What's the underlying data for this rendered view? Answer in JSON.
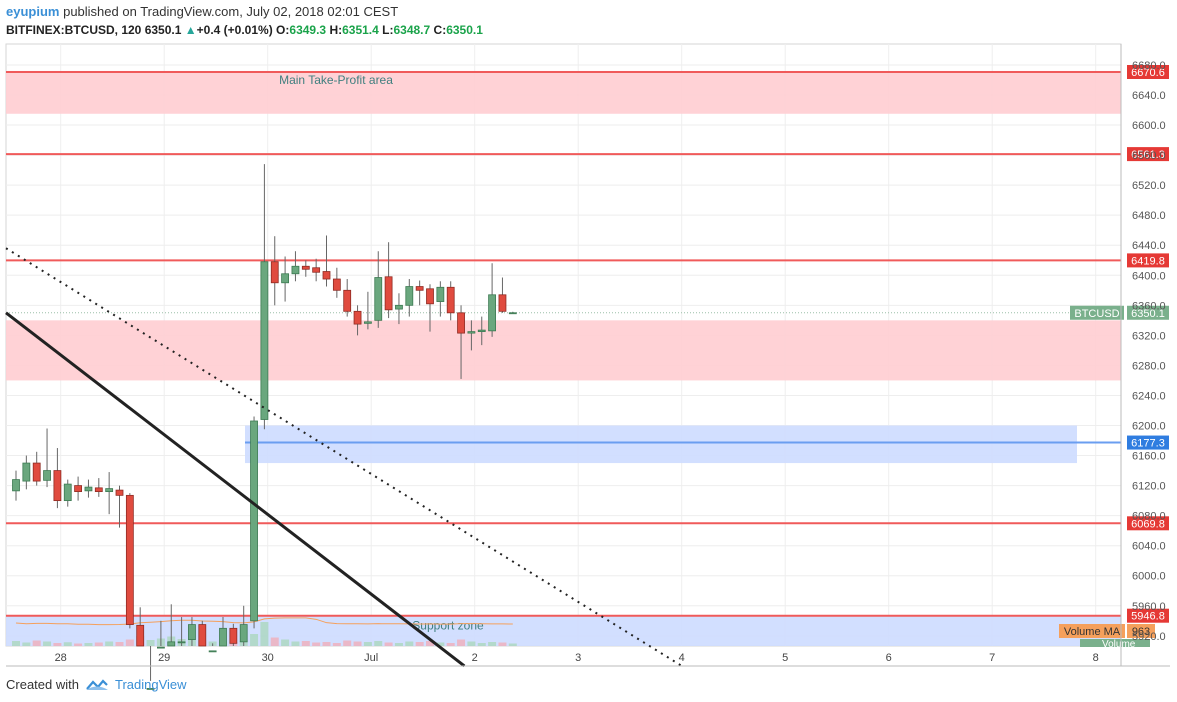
{
  "header": {
    "author": "eyupium",
    "published_text": "published on TradingView.com, July 02, 2018 02:01 CEST",
    "symbol_line": "BITFINEX:BTCUSD, 120",
    "last": "6350.1",
    "change": "+0.4 (+0.01%)",
    "o_label": "O:",
    "o_val": "6349.3",
    "h_label": "H:",
    "h_val": "6351.4",
    "l_label": "L:",
    "l_val": "6348.7",
    "c_label": "C:",
    "c_val": "6350.1"
  },
  "footer": {
    "created_with": "Created with",
    "brand": "TradingView"
  },
  "colors": {
    "up": "#26a69a",
    "up_fill": "#6aa77e",
    "down": "#e04b3f",
    "red_line": "#f05a5a",
    "red_zone": "#ffcdd2",
    "blue_zone": "#cddcff",
    "blue_line": "#6a9ef0",
    "price_label": "#7ab08c",
    "volume_ma_label": "#f5a05c"
  },
  "chart_data": {
    "type": "candlestick",
    "symbol": "BTCUSD",
    "last_price": 6350.1,
    "y_ticks": [
      5920,
      5960,
      6000,
      6040,
      6080,
      6120,
      6160,
      6200,
      6240,
      6280,
      6320,
      6360,
      6400,
      6440,
      6480,
      6520,
      6560,
      6600,
      6640,
      6680
    ],
    "x_ticks": [
      {
        "label": "28",
        "idx": 2
      },
      {
        "label": "29",
        "idx": 12
      },
      {
        "label": "30",
        "idx": 22
      },
      {
        "label": "Jul",
        "idx": 32
      },
      {
        "label": "2",
        "idx": 42
      },
      {
        "label": "3",
        "idx": 52
      },
      {
        "label": "4",
        "idx": 62
      },
      {
        "label": "5",
        "idx": 72
      },
      {
        "label": "6",
        "idx": 82
      },
      {
        "label": "7",
        "idx": 92
      },
      {
        "label": "8",
        "idx": 102
      }
    ],
    "horizontal_levels": [
      {
        "price": 6670.6,
        "label": "6670.6",
        "kind": "resistance"
      },
      {
        "price": 6561.3,
        "label": "6561.3",
        "kind": "resistance"
      },
      {
        "price": 6419.8,
        "label": "6419.8",
        "kind": "resistance"
      },
      {
        "price": 6177.3,
        "label": "6177.3",
        "kind": "level"
      },
      {
        "price": 6069.8,
        "label": "6069.8",
        "kind": "resistance"
      },
      {
        "price": 5946.8,
        "label": "5946.8",
        "kind": "resistance"
      }
    ],
    "zones": [
      {
        "name": "Main Take-Profit area",
        "from": 6615,
        "to": 6672,
        "color": "red",
        "labelled": true
      },
      {
        "name": "",
        "from": 6260,
        "to": 6340,
        "color": "red",
        "labelled": false
      },
      {
        "name": "",
        "from": 6150,
        "to": 6200,
        "color": "blue",
        "labelled": false
      },
      {
        "name": "Support zone",
        "from": 5880,
        "to": 5946,
        "color": "blue",
        "labelled": true
      }
    ],
    "candles": [
      {
        "o": 6113,
        "h": 6140,
        "l": 6100,
        "c": 6128
      },
      {
        "o": 6126,
        "h": 6160,
        "l": 6115,
        "c": 6150
      },
      {
        "o": 6150,
        "h": 6165,
        "l": 6120,
        "c": 6126
      },
      {
        "o": 6127,
        "h": 6196,
        "l": 6118,
        "c": 6140
      },
      {
        "o": 6140,
        "h": 6170,
        "l": 6090,
        "c": 6100
      },
      {
        "o": 6100,
        "h": 6128,
        "l": 6092,
        "c": 6122
      },
      {
        "o": 6120,
        "h": 6132,
        "l": 6100,
        "c": 6112
      },
      {
        "o": 6113,
        "h": 6128,
        "l": 6104,
        "c": 6118
      },
      {
        "o": 6117,
        "h": 6130,
        "l": 6105,
        "c": 6112
      },
      {
        "o": 6112,
        "h": 6138,
        "l": 6082,
        "c": 6116
      },
      {
        "o": 6114,
        "h": 6120,
        "l": 6064,
        "c": 6107
      },
      {
        "o": 6107,
        "h": 6110,
        "l": 5930,
        "c": 5935
      },
      {
        "o": 5934,
        "h": 5958,
        "l": 5800,
        "c": 5820
      },
      {
        "o": 5820,
        "h": 5860,
        "l": 5790,
        "c": 5850
      },
      {
        "o": 5850,
        "h": 5940,
        "l": 5830,
        "c": 5905
      },
      {
        "o": 5905,
        "h": 5962,
        "l": 5880,
        "c": 5912
      },
      {
        "o": 5912,
        "h": 5945,
        "l": 5890,
        "c": 5912
      },
      {
        "o": 5915,
        "h": 5945,
        "l": 5900,
        "c": 5935
      },
      {
        "o": 5935,
        "h": 5940,
        "l": 5860,
        "c": 5890
      },
      {
        "o": 5890,
        "h": 5910,
        "l": 5860,
        "c": 5900
      },
      {
        "o": 5900,
        "h": 5945,
        "l": 5880,
        "c": 5930
      },
      {
        "o": 5930,
        "h": 5936,
        "l": 5885,
        "c": 5910
      },
      {
        "o": 5912,
        "h": 5960,
        "l": 5900,
        "c": 5935
      },
      {
        "o": 5940,
        "h": 6212,
        "l": 5930,
        "c": 6206
      },
      {
        "o": 6208,
        "h": 6548,
        "l": 6195,
        "c": 6418
      },
      {
        "o": 6418,
        "h": 6452,
        "l": 6360,
        "c": 6390
      },
      {
        "o": 6390,
        "h": 6425,
        "l": 6365,
        "c": 6402
      },
      {
        "o": 6402,
        "h": 6432,
        "l": 6392,
        "c": 6412
      },
      {
        "o": 6412,
        "h": 6420,
        "l": 6398,
        "c": 6408
      },
      {
        "o": 6410,
        "h": 6422,
        "l": 6392,
        "c": 6404
      },
      {
        "o": 6405,
        "h": 6453,
        "l": 6385,
        "c": 6395
      },
      {
        "o": 6395,
        "h": 6410,
        "l": 6370,
        "c": 6380
      },
      {
        "o": 6380,
        "h": 6395,
        "l": 6345,
        "c": 6352
      },
      {
        "o": 6352,
        "h": 6360,
        "l": 6320,
        "c": 6335
      },
      {
        "o": 6336,
        "h": 6378,
        "l": 6328,
        "c": 6338
      },
      {
        "o": 6340,
        "h": 6432,
        "l": 6330,
        "c": 6397
      },
      {
        "o": 6398,
        "h": 6444,
        "l": 6343,
        "c": 6354
      },
      {
        "o": 6355,
        "h": 6376,
        "l": 6335,
        "c": 6360
      },
      {
        "o": 6360,
        "h": 6395,
        "l": 6345,
        "c": 6385
      },
      {
        "o": 6385,
        "h": 6393,
        "l": 6360,
        "c": 6380
      },
      {
        "o": 6382,
        "h": 6388,
        "l": 6325,
        "c": 6362
      },
      {
        "o": 6365,
        "h": 6392,
        "l": 6345,
        "c": 6384
      },
      {
        "o": 6384,
        "h": 6392,
        "l": 6340,
        "c": 6350
      },
      {
        "o": 6350,
        "h": 6360,
        "l": 6262,
        "c": 6323
      },
      {
        "o": 6323,
        "h": 6340,
        "l": 6300,
        "c": 6325
      },
      {
        "o": 6325,
        "h": 6345,
        "l": 6307,
        "c": 6327
      },
      {
        "o": 6326,
        "h": 6416,
        "l": 6318,
        "c": 6374
      },
      {
        "o": 6374,
        "h": 6397,
        "l": 6350,
        "c": 6352
      },
      {
        "o": 6349.3,
        "h": 6351.4,
        "l": 6348.7,
        "c": 6350.1
      }
    ],
    "volume_label": "Volume MA",
    "volume_value": "963",
    "volume_label2": "Volume",
    "volume_bars": [
      20,
      14,
      22,
      18,
      12,
      15,
      10,
      12,
      14,
      18,
      16,
      26,
      40,
      24,
      30,
      38,
      28,
      26,
      22,
      18,
      20,
      16,
      22,
      48,
      96,
      34,
      26,
      18,
      20,
      14,
      16,
      12,
      22,
      18,
      16,
      20,
      14,
      12,
      18,
      16,
      20,
      14,
      12,
      26,
      18,
      12,
      16,
      14,
      10
    ],
    "trendlines": [
      {
        "name": "",
        "style": "solid",
        "from": {
          "idx": -1,
          "price": 6350
        },
        "to": {
          "idx": 41,
          "price": 5880
        }
      },
      {
        "name": "",
        "style": "dotted",
        "from": {
          "idx": -1,
          "price": 6436
        },
        "to": {
          "idx": 62,
          "price": 5880
        }
      }
    ]
  }
}
